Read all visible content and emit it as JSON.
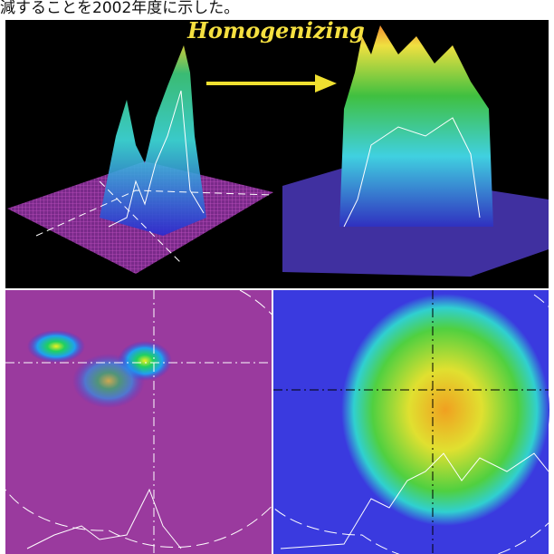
{
  "caption": "減することを2002年度に示した。",
  "label": "Homogenizing"
}
